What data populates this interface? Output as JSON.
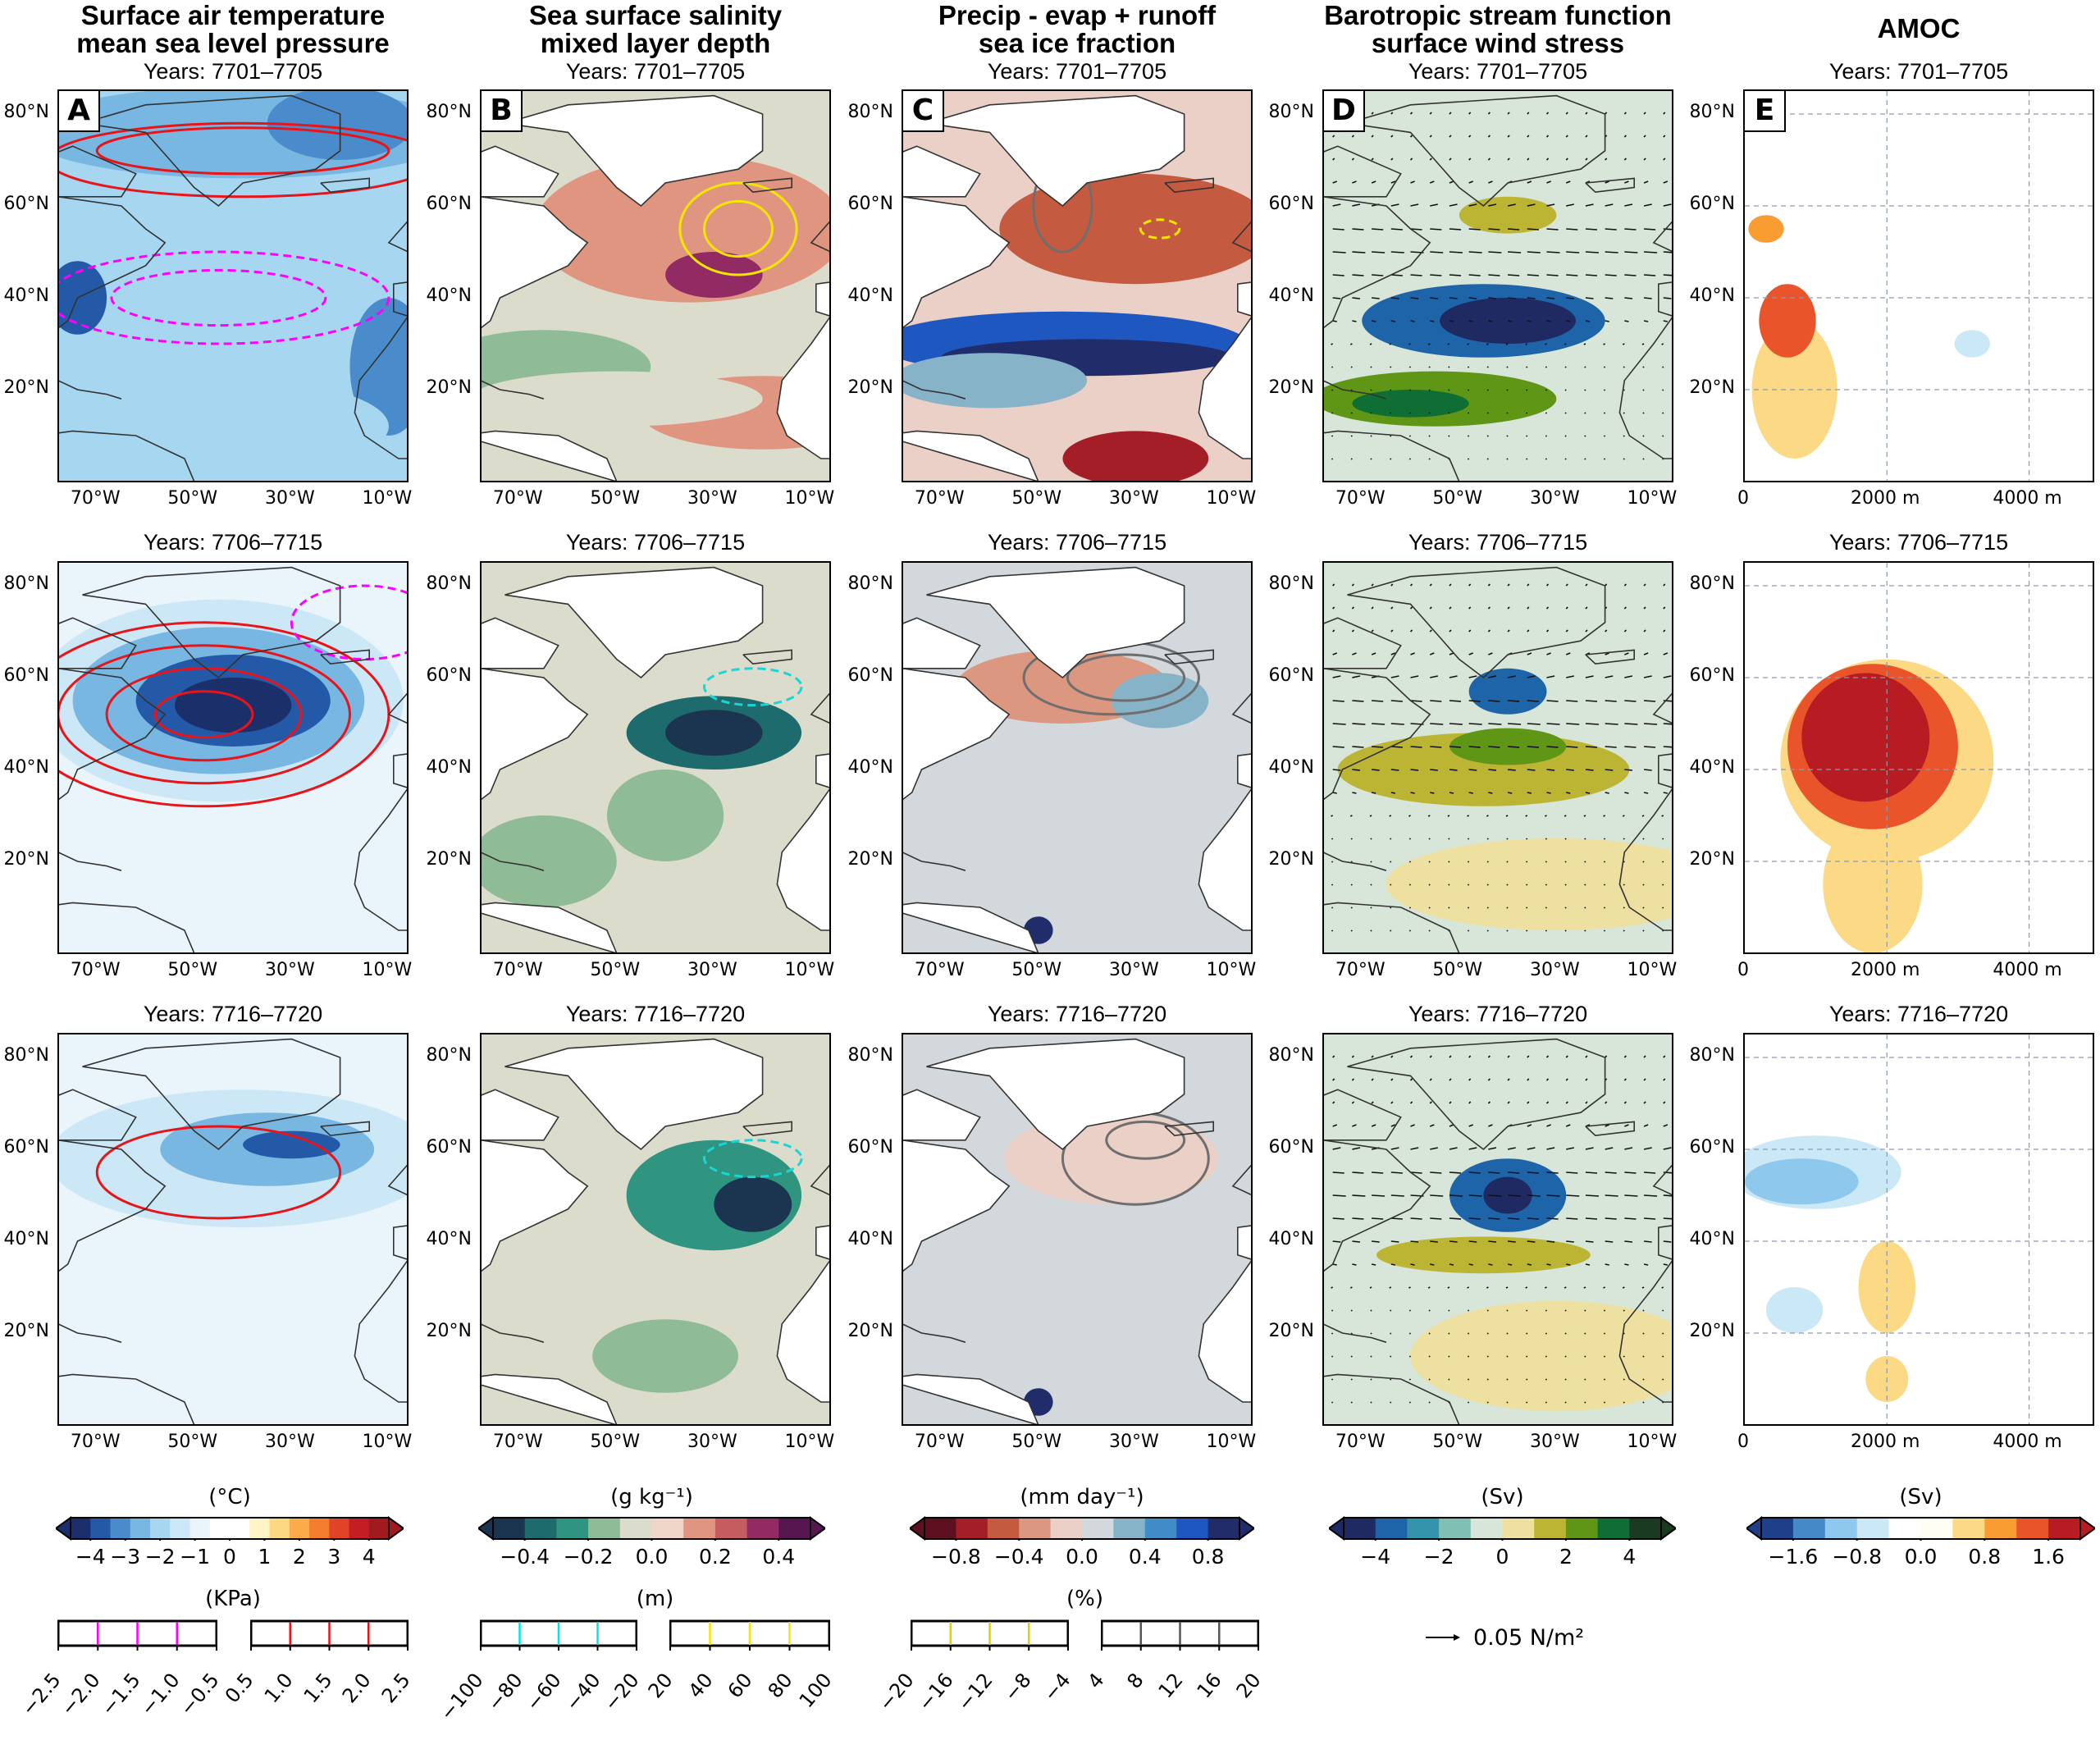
{
  "columns": [
    {
      "letter": "A",
      "title_lines": [
        "Surface air temperature",
        "mean sea level pressure"
      ],
      "x_ticks": [
        "70°W",
        "50°W",
        "30°W",
        "10°W"
      ]
    },
    {
      "letter": "B",
      "title_lines": [
        "Sea surface salinity",
        "mixed layer depth"
      ],
      "x_ticks": [
        "70°W",
        "50°W",
        "30°W",
        "10°W"
      ]
    },
    {
      "letter": "C",
      "title_lines": [
        "Precip - evap + runoff",
        "sea ice fraction"
      ],
      "x_ticks": [
        "70°W",
        "50°W",
        "30°W",
        "10°W"
      ]
    },
    {
      "letter": "D",
      "title_lines": [
        "Barotropic stream function",
        "surface wind stress"
      ],
      "x_ticks": [
        "70°W",
        "50°W",
        "30°W",
        "10°W"
      ]
    },
    {
      "letter": "E",
      "title_lines": [
        "AMOC"
      ],
      "x_ticks": [
        "0",
        "2000 m",
        "4000 m"
      ]
    }
  ],
  "rows": [
    {
      "years": "Years: 7701–7705"
    },
    {
      "years": "Years: 7706–7715"
    },
    {
      "years": "Years: 7716–7720"
    }
  ],
  "y_ticks": [
    "80°N",
    "60°N",
    "40°N",
    "20°N"
  ],
  "colorbars": [
    {
      "unit": "(°C)",
      "ticks": [
        "−4",
        "−3",
        "−2",
        "−1",
        "0",
        "1",
        "2",
        "3",
        "4"
      ],
      "colors": [
        "#1b2f6b",
        "#2459a8",
        "#4a8ccb",
        "#78b7e1",
        "#a6d6f0",
        "#cce8f6",
        "#e9f5fb",
        "#ffffff",
        "#ffffff",
        "#fff3c8",
        "#fdd882",
        "#fbac49",
        "#f47d2f",
        "#e04428",
        "#c41e24",
        "#a11a1f"
      ]
    },
    {
      "unit": "(g kg⁻¹)",
      "ticks": [
        "−0.4",
        "−0.2",
        "0.0",
        "0.2",
        "0.4"
      ],
      "colors": [
        "#1b3550",
        "#1e6b6e",
        "#2f9580",
        "#8fbc96",
        "#dcdccc",
        "#efd6c8",
        "#df9580",
        "#c45c60",
        "#922b63",
        "#561650"
      ]
    },
    {
      "unit": "(mm day⁻¹)",
      "ticks": [
        "−0.8",
        "−0.4",
        "0.0",
        "0.4",
        "0.8"
      ],
      "colors": [
        "#5d1020",
        "#a31e27",
        "#c45a40",
        "#dc9780",
        "#ead0c6",
        "#d2d8dc",
        "#87b3c8",
        "#3f8cc6",
        "#1e57c0",
        "#212d6b"
      ]
    },
    {
      "unit": "(Sv)",
      "ticks": [
        "−4",
        "−2",
        "0",
        "2",
        "4"
      ],
      "colors": [
        "#202a62",
        "#1e64a8",
        "#3494ac",
        "#7fbfb4",
        "#d7e6d9",
        "#ede0a0",
        "#bcb534",
        "#5f9615",
        "#0f6e34",
        "#1b3a22"
      ]
    },
    {
      "unit": "(Sv)",
      "ticks": [
        "−1.6",
        "−0.8",
        "0.0",
        "0.8",
        "1.6"
      ],
      "colors": [
        "#1f3f8a",
        "#4589c8",
        "#8ec8ec",
        "#cbe8f6",
        "#ffffff",
        "#fffef5",
        "#fbd985",
        "#f99d33",
        "#e9542a",
        "#b71c22"
      ]
    }
  ],
  "line_legends": [
    {
      "unit": "(KPa)",
      "neg": {
        "ticks": [
          "−2.5",
          "−2.0",
          "−1.5",
          "−1.0",
          "−0.5"
        ],
        "color": "#ff00ff"
      },
      "pos": {
        "ticks": [
          "0.5",
          "1.0",
          "1.5",
          "2.0",
          "2.5"
        ],
        "color": "#e8141a"
      }
    },
    {
      "unit": "(m)",
      "neg": {
        "ticks": [
          "−100",
          "−80",
          "−60",
          "−40",
          "−20"
        ],
        "color": "#00e5e5"
      },
      "pos": {
        "ticks": [
          "20",
          "40",
          "60",
          "80",
          "100"
        ],
        "color": "#f5e600"
      }
    },
    {
      "unit": "(%)",
      "neg": {
        "ticks": [
          "−20",
          "−16",
          "−12",
          "−8",
          "−4"
        ],
        "color": "#f0c800"
      },
      "pos": {
        "ticks": [
          "4",
          "8",
          "12",
          "16",
          "20"
        ],
        "color": "#555555"
      }
    }
  ],
  "wind_legend": {
    "label": "0.05 N/m²",
    "icon": "arrow-right-icon"
  },
  "contour_colors": {
    "slp_pos": "#e8141a",
    "slp_neg": "#ff00ff",
    "mld_pos": "#f5e600",
    "mld_neg": "#19d6d6",
    "ice": "#6e6e6e",
    "coast": "#333333"
  }
}
